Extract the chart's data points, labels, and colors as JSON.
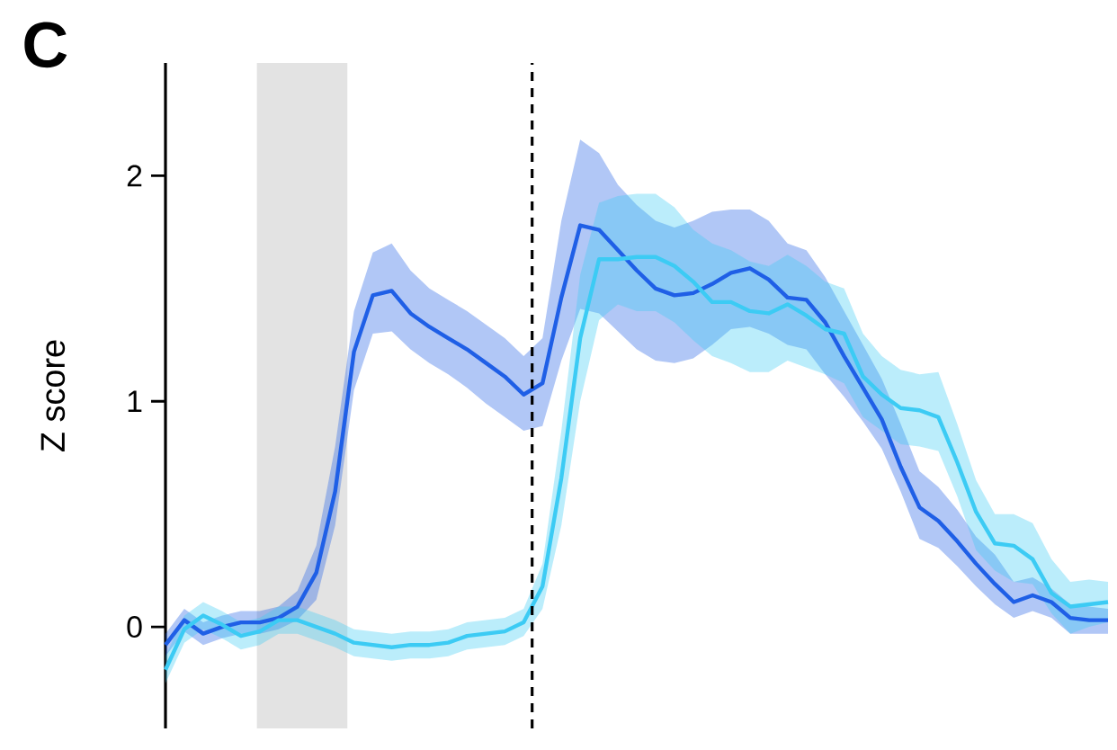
{
  "chart_data": {
    "type": "line",
    "title": "C",
    "ylabel": "Z score",
    "categories": [
      null,
      null,
      null,
      null,
      null,
      null,
      null,
      null,
      null,
      null,
      null,
      null,
      null,
      null,
      null,
      null,
      null,
      null,
      null,
      null,
      null,
      null,
      null,
      null,
      null,
      null,
      null,
      null,
      null,
      null,
      null,
      null,
      null,
      null,
      null,
      null,
      null,
      null,
      null,
      null,
      null,
      null,
      null,
      null,
      null,
      null,
      null,
      null,
      null,
      null,
      null
    ],
    "ylim": [
      -0.45,
      2.5
    ],
    "yticks": [
      0,
      1,
      2
    ],
    "tick_labels": "y",
    "series": [
      {
        "color": "#1f5fe6",
        "values": [
          -0.08,
          0.03,
          -0.03,
          0,
          0.02,
          0.02,
          0.04,
          0.09,
          0.24,
          0.6,
          1.22,
          1.47,
          1.49,
          1.39,
          1.33,
          1.28,
          1.23,
          1.17,
          1.11,
          1.03,
          1.08,
          1.46,
          1.78,
          1.76,
          1.67,
          1.58,
          1.5,
          1.47,
          1.48,
          1.52,
          1.57,
          1.59,
          1.54,
          1.46,
          1.45,
          1.35,
          1.2,
          1.06,
          0.92,
          0.71,
          0.53,
          0.47,
          0.38,
          0.28,
          0.19,
          0.11,
          0.14,
          0.11,
          0.04,
          0.03,
          0.03
        ],
        "lower": [
          -0.13,
          -0.02,
          -0.08,
          -0.05,
          -0.03,
          -0.03,
          -0.01,
          0.03,
          0.12,
          0.45,
          1.05,
          1.3,
          1.31,
          1.23,
          1.17,
          1.12,
          1.06,
          0.99,
          0.93,
          0.87,
          0.89,
          1.18,
          1.41,
          1.39,
          1.31,
          1.23,
          1.18,
          1.17,
          1.19,
          1.25,
          1.32,
          1.33,
          1.3,
          1.25,
          1.23,
          1.12,
          1.02,
          0.91,
          0.79,
          0.6,
          0.39,
          0.35,
          0.27,
          0.18,
          0.1,
          0.04,
          0.07,
          0.04,
          -0.03,
          -0.03,
          -0.03
        ],
        "upper": [
          -0.03,
          0.08,
          0.02,
          0.05,
          0.07,
          0.07,
          0.09,
          0.16,
          0.36,
          0.8,
          1.4,
          1.66,
          1.7,
          1.58,
          1.5,
          1.45,
          1.4,
          1.34,
          1.28,
          1.2,
          1.28,
          1.8,
          2.16,
          2.1,
          1.96,
          1.87,
          1.8,
          1.77,
          1.8,
          1.84,
          1.85,
          1.85,
          1.8,
          1.7,
          1.67,
          1.55,
          1.4,
          1.25,
          1.1,
          0.9,
          0.69,
          0.62,
          0.52,
          0.4,
          0.32,
          0.2,
          0.22,
          0.17,
          0.1,
          0.09,
          0.08
        ]
      },
      {
        "color": "#3ccbf4",
        "values": [
          -0.19,
          -0.01,
          0.05,
          0.01,
          -0.04,
          -0.02,
          0.03,
          0.03,
          0,
          -0.03,
          -0.07,
          -0.08,
          -0.09,
          -0.08,
          -0.08,
          -0.07,
          -0.04,
          -0.03,
          -0.02,
          0.02,
          0.18,
          0.66,
          1.28,
          1.63,
          1.63,
          1.64,
          1.64,
          1.6,
          1.53,
          1.44,
          1.44,
          1.4,
          1.39,
          1.43,
          1.38,
          1.32,
          1.3,
          1.11,
          1.03,
          0.97,
          0.96,
          0.93,
          0.73,
          0.51,
          0.37,
          0.36,
          0.3,
          0.15,
          0.09,
          0.1,
          0.11
        ],
        "lower": [
          -0.25,
          -0.07,
          -0.01,
          -0.05,
          -0.1,
          -0.08,
          -0.03,
          -0.03,
          -0.06,
          -0.09,
          -0.13,
          -0.14,
          -0.15,
          -0.14,
          -0.14,
          -0.13,
          -0.1,
          -0.09,
          -0.08,
          -0.04,
          0.08,
          0.45,
          1.0,
          1.36,
          1.43,
          1.4,
          1.4,
          1.35,
          1.27,
          1.2,
          1.17,
          1.13,
          1.13,
          1.18,
          1.15,
          1.12,
          1.08,
          0.93,
          0.87,
          0.81,
          0.8,
          0.78,
          0.58,
          0.34,
          0.25,
          0.2,
          0.19,
          0.06,
          -0.03,
          0,
          0.02
        ],
        "upper": [
          -0.13,
          0.05,
          0.11,
          0.07,
          0.02,
          0.04,
          0.09,
          0.09,
          0.06,
          0.03,
          -0.01,
          -0.02,
          -0.03,
          -0.02,
          -0.02,
          -0.01,
          0.02,
          0.03,
          0.04,
          0.08,
          0.28,
          0.87,
          1.56,
          1.88,
          1.91,
          1.92,
          1.92,
          1.86,
          1.76,
          1.7,
          1.67,
          1.62,
          1.6,
          1.65,
          1.6,
          1.53,
          1.5,
          1.3,
          1.2,
          1.14,
          1.12,
          1.13,
          0.9,
          0.65,
          0.5,
          0.5,
          0.46,
          0.3,
          0.2,
          0.21,
          0.2
        ]
      }
    ]
  }
}
